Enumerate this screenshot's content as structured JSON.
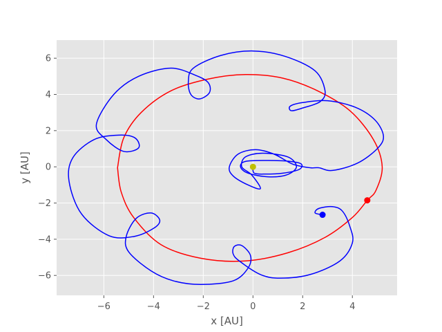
{
  "chart_data": {
    "type": "line",
    "style": "ggplot",
    "title": "",
    "xlabel": "x [AU]",
    "ylabel": "y [AU]",
    "xlim": [
      -7.9,
      5.8
    ],
    "ylim": [
      -7.1,
      7.0
    ],
    "xticks": [
      -6,
      -4,
      -2,
      0,
      2,
      4
    ],
    "yticks": [
      -6,
      -4,
      -2,
      0,
      2,
      4,
      6
    ],
    "xtick_labels": [
      "−6",
      "−4",
      "−2",
      "0",
      "2",
      "4"
    ],
    "ytick_labels": [
      "−6",
      "−4",
      "−2",
      "0",
      "2",
      "4",
      "6"
    ],
    "grid": true,
    "background_color": "#e5e5e5",
    "grid_color": "#ffffff",
    "series": [
      {
        "color": "#ff0000",
        "kind": "ellipse-orbit",
        "points": [
          [
            -5.45,
            -0.05
          ],
          [
            -5.2,
            1.6
          ],
          [
            -4.5,
            3.0
          ],
          [
            -3.3,
            4.2
          ],
          [
            -1.8,
            4.85
          ],
          [
            -0.3,
            5.1
          ],
          [
            1.2,
            4.9
          ],
          [
            2.6,
            4.2
          ],
          [
            3.9,
            3.1
          ],
          [
            4.85,
            1.5
          ],
          [
            5.2,
            0.0
          ],
          [
            4.95,
            -1.3
          ],
          [
            4.6,
            -1.85
          ],
          [
            4.0,
            -2.8
          ],
          [
            2.9,
            -3.9
          ],
          [
            1.4,
            -4.75
          ],
          [
            -0.3,
            -5.2
          ],
          [
            -2.1,
            -5.05
          ],
          [
            -3.7,
            -4.3
          ],
          [
            -4.8,
            -2.8
          ],
          [
            -5.3,
            -1.4
          ],
          [
            -5.45,
            -0.05
          ]
        ]
      },
      {
        "color": "#0000ff",
        "kind": "trajectory",
        "points": [
          [
            0.0,
            0.0
          ],
          [
            0.05,
            -0.35
          ],
          [
            0.5,
            -0.4
          ],
          [
            1.2,
            -0.35
          ],
          [
            1.85,
            -0.15
          ],
          [
            1.95,
            0.15
          ],
          [
            1.5,
            0.3
          ],
          [
            0.6,
            0.35
          ],
          [
            -0.3,
            0.3
          ],
          [
            -0.5,
            0.0
          ],
          [
            -0.2,
            -0.35
          ],
          [
            0.6,
            -0.55
          ],
          [
            1.35,
            -0.45
          ],
          [
            1.75,
            0.0
          ],
          [
            1.4,
            0.55
          ],
          [
            0.4,
            0.75
          ],
          [
            -0.3,
            0.55
          ],
          [
            -0.45,
            0.0
          ],
          [
            -0.05,
            -0.45
          ],
          [
            0.3,
            -1.2
          ],
          [
            -0.2,
            -1.0
          ],
          [
            -0.8,
            -0.5
          ],
          [
            -0.95,
            0.0
          ],
          [
            -0.6,
            0.7
          ],
          [
            0.1,
            0.95
          ],
          [
            0.85,
            0.7
          ],
          [
            1.6,
            0.15
          ],
          [
            2.3,
            -0.05
          ],
          [
            2.65,
            -0.05
          ],
          [
            3.2,
            -0.2
          ],
          [
            4.2,
            0.2
          ],
          [
            5.0,
            1.0
          ],
          [
            5.25,
            1.7
          ],
          [
            4.9,
            2.6
          ],
          [
            4.1,
            3.3
          ],
          [
            3.0,
            3.65
          ],
          [
            2.0,
            3.55
          ],
          [
            1.5,
            3.35
          ],
          [
            1.55,
            3.1
          ],
          [
            2.0,
            3.25
          ],
          [
            2.7,
            3.6
          ],
          [
            2.9,
            4.2
          ],
          [
            2.5,
            5.3
          ],
          [
            1.3,
            6.1
          ],
          [
            0.0,
            6.4
          ],
          [
            -1.3,
            6.15
          ],
          [
            -2.4,
            5.45
          ],
          [
            -2.6,
            4.7
          ],
          [
            -2.5,
            4.0
          ],
          [
            -2.15,
            3.75
          ],
          [
            -1.75,
            4.1
          ],
          [
            -1.8,
            4.65
          ],
          [
            -2.3,
            5.05
          ],
          [
            -3.3,
            5.45
          ],
          [
            -4.6,
            5.0
          ],
          [
            -5.6,
            4.0
          ],
          [
            -6.3,
            2.35
          ],
          [
            -5.9,
            1.5
          ],
          [
            -5.2,
            0.85
          ],
          [
            -4.6,
            1.05
          ],
          [
            -4.75,
            1.6
          ],
          [
            -5.4,
            1.75
          ],
          [
            -6.4,
            1.5
          ],
          [
            -7.25,
            0.5
          ],
          [
            -7.4,
            -0.8
          ],
          [
            -6.9,
            -2.6
          ],
          [
            -5.8,
            -3.8
          ],
          [
            -4.8,
            -3.85
          ],
          [
            -4.0,
            -3.4
          ],
          [
            -3.75,
            -2.95
          ],
          [
            -4.1,
            -2.55
          ],
          [
            -4.7,
            -2.85
          ],
          [
            -5.1,
            -3.85
          ],
          [
            -5.0,
            -4.7
          ],
          [
            -4.1,
            -5.75
          ],
          [
            -3.2,
            -6.3
          ],
          [
            -2.1,
            -6.5
          ],
          [
            -0.8,
            -6.3
          ],
          [
            -0.2,
            -5.6
          ],
          [
            -0.1,
            -4.9
          ],
          [
            -0.45,
            -4.35
          ],
          [
            -0.75,
            -4.4
          ],
          [
            -0.8,
            -4.8
          ],
          [
            -0.55,
            -5.2
          ],
          [
            0.3,
            -5.95
          ],
          [
            1.1,
            -6.15
          ],
          [
            2.3,
            -5.95
          ],
          [
            3.5,
            -5.2
          ],
          [
            4.0,
            -4.2
          ],
          [
            3.9,
            -3.3
          ],
          [
            3.6,
            -2.45
          ],
          [
            3.2,
            -2.2
          ],
          [
            2.65,
            -2.3
          ],
          [
            2.5,
            -2.55
          ],
          [
            2.8,
            -2.65
          ]
        ]
      }
    ],
    "markers": [
      {
        "x": 0.0,
        "y": 0.0,
        "color": "#bfbf00"
      },
      {
        "x": 4.6,
        "y": -1.85,
        "color": "#ff0000"
      },
      {
        "x": 2.8,
        "y": -2.65,
        "color": "#0000ff"
      }
    ]
  }
}
